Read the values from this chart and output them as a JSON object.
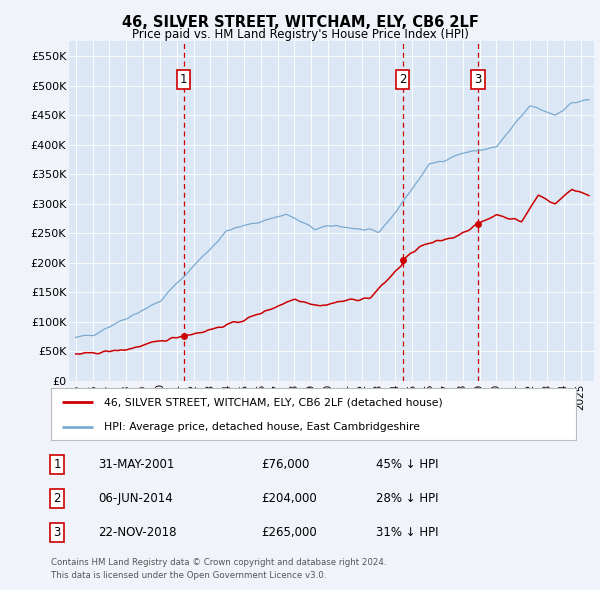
{
  "title1": "46, SILVER STREET, WITCHAM, ELY, CB6 2LF",
  "title2": "Price paid vs. HM Land Registry's House Price Index (HPI)",
  "background_color": "#f0f4fa",
  "plot_bg_color": "#dce7f5",
  "ylim": [
    0,
    575000
  ],
  "yticks": [
    0,
    50000,
    100000,
    150000,
    200000,
    250000,
    300000,
    350000,
    400000,
    450000,
    500000,
    550000
  ],
  "ytick_labels": [
    "£0",
    "£50K",
    "£100K",
    "£150K",
    "£200K",
    "£250K",
    "£300K",
    "£350K",
    "£400K",
    "£450K",
    "£500K",
    "£550K"
  ],
  "sale_dates": [
    2001.42,
    2014.43,
    2018.9
  ],
  "sale_prices": [
    76000,
    204000,
    265000
  ],
  "sale_labels": [
    "1",
    "2",
    "3"
  ],
  "sale_label_dates": [
    "31-MAY-2001",
    "06-JUN-2014",
    "22-NOV-2018"
  ],
  "sale_price_labels": [
    "£76,000",
    "£204,000",
    "£265,000"
  ],
  "sale_pct_labels": [
    "45% ↓ HPI",
    "28% ↓ HPI",
    "31% ↓ HPI"
  ],
  "red_line_color": "#cc0000",
  "blue_line_color": "#7aaad0",
  "vline_color": "#cc0000",
  "legend_label_red": "46, SILVER STREET, WITCHAM, ELY, CB6 2LF (detached house)",
  "legend_label_blue": "HPI: Average price, detached house, East Cambridgeshire",
  "footer1": "Contains HM Land Registry data © Crown copyright and database right 2024.",
  "footer2": "This data is licensed under the Open Government Licence v3.0."
}
